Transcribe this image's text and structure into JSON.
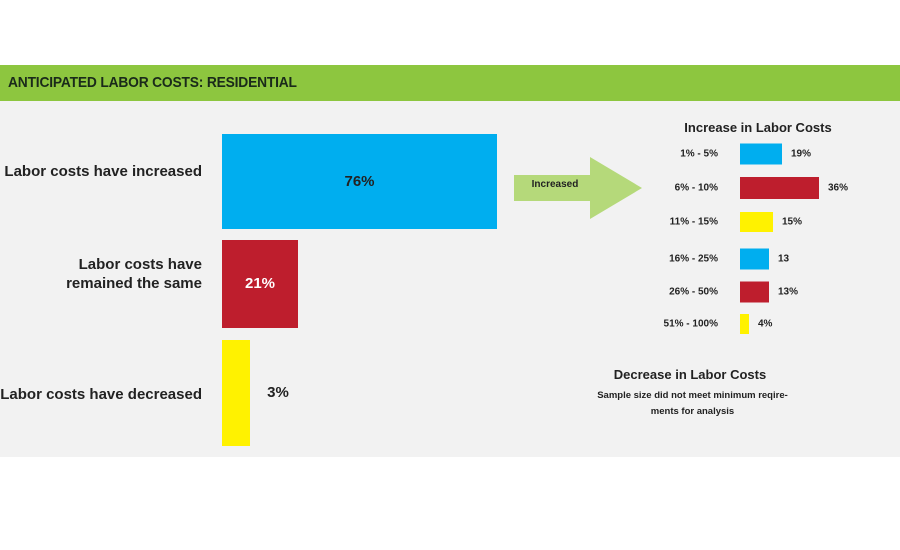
{
  "header": {
    "title": "ANTICIPATED LABOR COSTS: RESIDENTIAL"
  },
  "colors": {
    "header_bg": "#8dc63f",
    "panel_bg": "#f2f2f2",
    "blue": "#00aeef",
    "red": "#be1e2d",
    "yellow": "#fff200",
    "arrow": "#b5d97a"
  },
  "chart_data": [
    {
      "type": "bar",
      "orientation": "horizontal",
      "categories": [
        "Labor costs have increased",
        "Labor costs have remained the same",
        "Labor costs have decreased"
      ],
      "category_lines": [
        [
          "Labor costs have increased"
        ],
        [
          "Labor costs have",
          "remained the same"
        ],
        [
          "Labor costs have decreased"
        ]
      ],
      "values": [
        76,
        21,
        3
      ],
      "value_labels": [
        "76%",
        "21%",
        "3%"
      ],
      "bar_colors": [
        "#00aeef",
        "#be1e2d",
        "#fff200"
      ],
      "title": "",
      "xlim": [
        0,
        76
      ]
    },
    {
      "type": "bar",
      "orientation": "horizontal",
      "title": "Increase in Labor Costs",
      "categories": [
        "1% - 5%",
        "6% - 10%",
        "11% - 15%",
        "16% - 25%",
        "26% - 50%",
        "51% - 100%"
      ],
      "values": [
        19,
        36,
        15,
        13,
        13,
        4
      ],
      "value_labels": [
        "19%",
        "36%",
        "15%",
        "13",
        "13%",
        "4%"
      ],
      "bar_colors": [
        "#00aeef",
        "#be1e2d",
        "#fff200",
        "#00aeef",
        "#be1e2d",
        "#fff200"
      ],
      "xlim": [
        0,
        36
      ]
    }
  ],
  "arrow": {
    "label": "Increased"
  },
  "decrease": {
    "title": "Decrease in Labor Costs",
    "note_lines": [
      "Sample size did not meet minimum reqire-",
      "ments for analysis"
    ]
  }
}
